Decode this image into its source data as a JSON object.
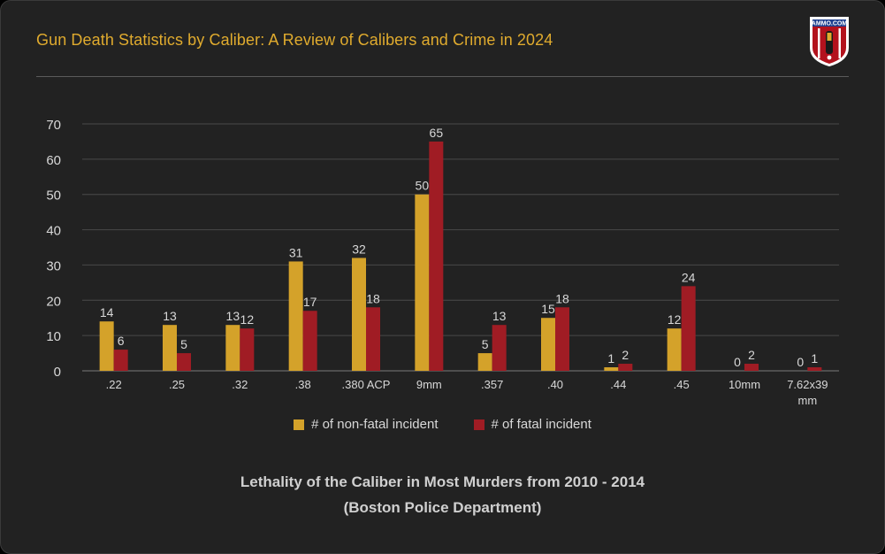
{
  "header": {
    "title": "Gun Death Statistics by Caliber: A Review of Calibers and Crime in 2024",
    "logo_text": "AMMO.COM"
  },
  "colors": {
    "series1": "#d4a22a",
    "series2": "#a01c24",
    "title": "#e0ab2e",
    "grid": "#4a4a4a",
    "text": "#d8d8d8"
  },
  "chart_data": {
    "type": "bar",
    "categories": [
      ".22",
      ".25",
      ".32",
      ".38",
      ".380 ACP",
      "9mm",
      ".357",
      ".40",
      ".44",
      ".45",
      "10mm",
      "7.62x39 mm"
    ],
    "series": [
      {
        "name": "# of non-fatal incident",
        "values": [
          14,
          13,
          13,
          31,
          32,
          50,
          5,
          15,
          1,
          12,
          0,
          0
        ]
      },
      {
        "name": "# of fatal incident",
        "values": [
          6,
          5,
          12,
          17,
          18,
          65,
          13,
          18,
          2,
          24,
          2,
          1
        ]
      }
    ],
    "yticks": [
      0,
      10,
      20,
      30,
      40,
      50,
      60,
      70
    ],
    "ylim": [
      0,
      70
    ],
    "grid": true,
    "legend_position": "bottom",
    "caption_line1": "Lethality of the Caliber in Most Murders from 2010 - 2014",
    "caption_line2": "(Boston Police Department)"
  }
}
